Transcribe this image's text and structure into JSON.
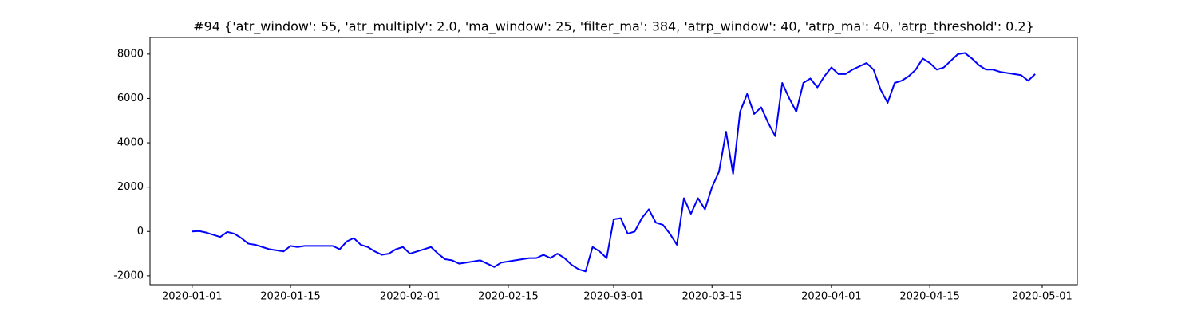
{
  "chart_data": {
    "type": "line",
    "title": "#94 {'atr_window': 55, 'atr_multiply': 2.0, 'ma_window': 25, 'filter_ma': 384, 'atrp_window': 40, 'atrp_ma': 40, 'atrp_threshold': 0.2}",
    "x": [
      "2020-01-01",
      "2020-01-02",
      "2020-01-03",
      "2020-01-04",
      "2020-01-05",
      "2020-01-06",
      "2020-01-07",
      "2020-01-08",
      "2020-01-09",
      "2020-01-10",
      "2020-01-11",
      "2020-01-12",
      "2020-01-13",
      "2020-01-14",
      "2020-01-15",
      "2020-01-16",
      "2020-01-17",
      "2020-01-18",
      "2020-01-19",
      "2020-01-20",
      "2020-01-21",
      "2020-01-22",
      "2020-01-23",
      "2020-01-24",
      "2020-01-25",
      "2020-01-26",
      "2020-01-27",
      "2020-01-28",
      "2020-01-29",
      "2020-01-30",
      "2020-01-31",
      "2020-02-01",
      "2020-02-02",
      "2020-02-03",
      "2020-02-04",
      "2020-02-05",
      "2020-02-06",
      "2020-02-07",
      "2020-02-08",
      "2020-02-09",
      "2020-02-10",
      "2020-02-11",
      "2020-02-12",
      "2020-02-13",
      "2020-02-14",
      "2020-02-15",
      "2020-02-16",
      "2020-02-17",
      "2020-02-18",
      "2020-02-19",
      "2020-02-20",
      "2020-02-21",
      "2020-02-22",
      "2020-02-23",
      "2020-02-24",
      "2020-02-25",
      "2020-02-26",
      "2020-02-27",
      "2020-02-28",
      "2020-02-29",
      "2020-03-01",
      "2020-03-02",
      "2020-03-03",
      "2020-03-04",
      "2020-03-05",
      "2020-03-06",
      "2020-03-07",
      "2020-03-08",
      "2020-03-09",
      "2020-03-10",
      "2020-03-11",
      "2020-03-12",
      "2020-03-13",
      "2020-03-14",
      "2020-03-15",
      "2020-03-16",
      "2020-03-17",
      "2020-03-18",
      "2020-03-19",
      "2020-03-20",
      "2020-03-21",
      "2020-03-22",
      "2020-03-23",
      "2020-03-24",
      "2020-03-25",
      "2020-03-26",
      "2020-03-27",
      "2020-03-28",
      "2020-03-29",
      "2020-03-30",
      "2020-03-31",
      "2020-04-01",
      "2020-04-02",
      "2020-04-03",
      "2020-04-04",
      "2020-04-05",
      "2020-04-06",
      "2020-04-07",
      "2020-04-08",
      "2020-04-09",
      "2020-04-10",
      "2020-04-11",
      "2020-04-12",
      "2020-04-13",
      "2020-04-14",
      "2020-04-15",
      "2020-04-16",
      "2020-04-17",
      "2020-04-18",
      "2020-04-19",
      "2020-04-20",
      "2020-04-21",
      "2020-04-22",
      "2020-04-23",
      "2020-04-24",
      "2020-04-25",
      "2020-04-26",
      "2020-04-27",
      "2020-04-28",
      "2020-04-29",
      "2020-04-30"
    ],
    "values": [
      0,
      20,
      -50,
      -150,
      -250,
      -20,
      -100,
      -300,
      -550,
      -600,
      -700,
      -800,
      -850,
      -900,
      -650,
      -700,
      -650,
      -650,
      -650,
      -650,
      -650,
      -800,
      -450,
      -300,
      -600,
      -700,
      -900,
      -1050,
      -1000,
      -800,
      -700,
      -1000,
      -900,
      -800,
      -700,
      -1000,
      -1250,
      -1300,
      -1450,
      -1400,
      -1350,
      -1300,
      -1450,
      -1600,
      -1400,
      -1350,
      -1300,
      -1250,
      -1200,
      -1200,
      -1050,
      -1200,
      -1000,
      -1200,
      -1500,
      -1700,
      -1800,
      -700,
      -900,
      -1200,
      550,
      600,
      -100,
      0,
      600,
      1000,
      400,
      300,
      -100,
      -600,
      1500,
      800,
      1500,
      1000,
      2000,
      2700,
      4500,
      2600,
      5400,
      6200,
      5300,
      5600,
      4900,
      4300,
      6700,
      6000,
      5400,
      6700,
      6900,
      6500,
      7000,
      7400,
      7100,
      7100,
      7300,
      7450,
      7600,
      7300,
      6400,
      5800,
      6700,
      6800,
      7000,
      7300,
      7800,
      7600,
      7300,
      7400,
      7700,
      8000,
      8050,
      7800,
      7500,
      7300,
      7300,
      7200,
      7150,
      7100,
      7050,
      6800,
      7100
    ],
    "color": "#0000ff",
    "xlim": [
      "2019-12-26",
      "2020-05-06"
    ],
    "xticks": [
      "2020-01-01",
      "2020-01-15",
      "2020-02-01",
      "2020-02-15",
      "2020-03-01",
      "2020-03-15",
      "2020-04-01",
      "2020-04-15",
      "2020-05-01"
    ],
    "ylim": [
      -2400,
      8750
    ],
    "yticks": [
      -2000,
      0,
      2000,
      4000,
      6000,
      8000
    ],
    "grid": false
  }
}
